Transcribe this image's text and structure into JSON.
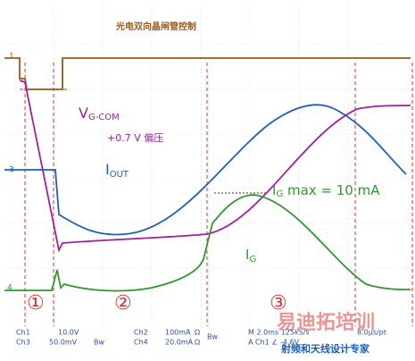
{
  "header": {
    "title": "光电双向晶闸管控制"
  },
  "markers": [
    "1",
    "3",
    "4"
  ],
  "annotations": {
    "vgcom": {
      "main": "V",
      "sub": "G-COM"
    },
    "bias": "+0.7 V 偏压",
    "iout": {
      "main": "I",
      "sub": "OUT"
    },
    "igmax": {
      "main": "I",
      "sub": "G",
      "rest": " max = 10 mA"
    },
    "ig": {
      "main": "I",
      "sub": "G"
    },
    "phases": [
      "①",
      "②",
      "③"
    ]
  },
  "status": {
    "ch1": [
      "Ch1",
      "10.0V"
    ],
    "ch3": [
      "Ch3",
      "50.0mV",
      "Bw"
    ],
    "ch2": [
      "Ch2",
      "100mA",
      "Ω",
      "Bw"
    ],
    "ch4": [
      "Ch4",
      "20.0mA",
      "Ω"
    ],
    "timebase": "M 2.0ms 125kS/s",
    "resolution": "8.0μs/pt",
    "trigger": "A  Ch1  ∠ -4.6V"
  },
  "watermark": {
    "title": "易迪拓培训",
    "subtitle": "射频和天线设计专家"
  }
}
